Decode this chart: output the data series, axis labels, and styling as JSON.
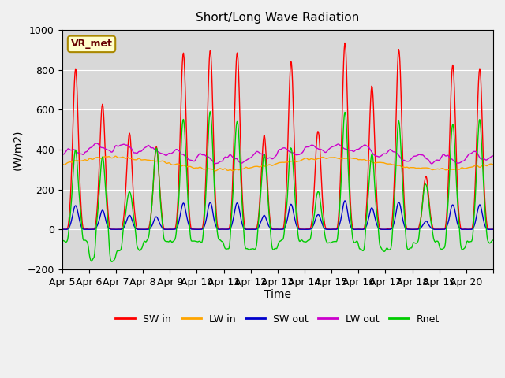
{
  "title": "Short/Long Wave Radiation",
  "ylabel": "(W/m2)",
  "xlabel": "Time",
  "ylim": [
    -200,
    1000
  ],
  "bg_color": "#d8d8d8",
  "annotation_label": "VR_met",
  "series_colors": {
    "SW_in": "#ff0000",
    "LW_in": "#ffa500",
    "SW_out": "#0000cc",
    "LW_out": "#cc00cc",
    "Rnet": "#00cc00"
  },
  "legend_labels": [
    "SW in",
    "LW in",
    "SW out",
    "LW out",
    "Rnet"
  ],
  "xtick_labels": [
    "Apr 5",
    "Apr 6",
    "Apr 7",
    "Apr 8",
    "Apr 9",
    "Apr 10",
    "Apr 11",
    "Apr 12",
    "Apr 13",
    "Apr 14",
    "Apr 15",
    "Apr 16",
    "Apr 17",
    "Apr 18",
    "Apr 19",
    "Apr 20"
  ],
  "n_days": 16,
  "points_per_day": 48
}
